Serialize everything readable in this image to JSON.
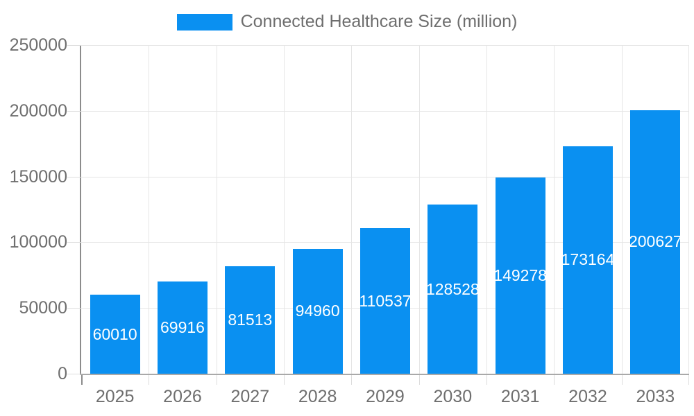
{
  "chart_data": {
    "type": "bar",
    "title": "",
    "series_label": "Connected Healthcare Size (million)",
    "categories": [
      "2025",
      "2026",
      "2027",
      "2028",
      "2029",
      "2030",
      "2031",
      "2032",
      "2033"
    ],
    "values": [
      60010,
      69916,
      81513,
      94960,
      110537,
      128528,
      149278,
      173164,
      200627
    ],
    "xlabel": "",
    "ylabel": "",
    "ylim": [
      0,
      250000
    ],
    "ytick_step": 50000,
    "yticks": [
      0,
      50000,
      100000,
      150000,
      200000,
      250000
    ],
    "grid": true,
    "legend_position": "top",
    "value_labels_shown": true
  },
  "colors": {
    "bar": "#0a90f1",
    "axis_text": "#6e6e6e",
    "value_text": "#ffffff",
    "gridline": "#e5e5e5",
    "tick_mark": "#dcdcdc",
    "x_axis_line": "#a9a9a9",
    "y_axis_line": "#8c8c8c",
    "background": "#ffffff"
  }
}
